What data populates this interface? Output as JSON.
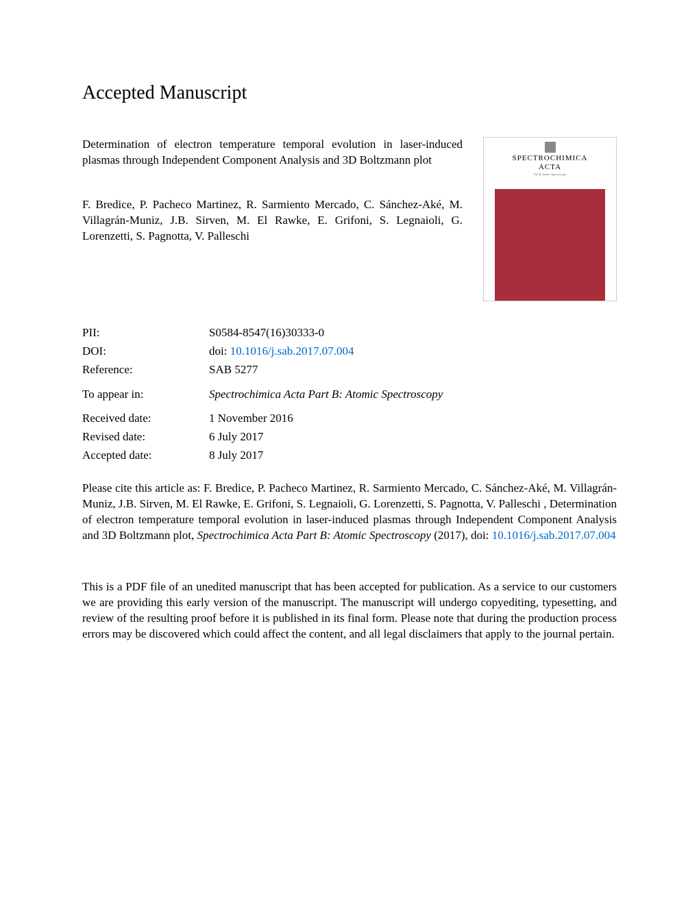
{
  "heading": "Accepted Manuscript",
  "article": {
    "title": "Determination of electron temperature temporal evolution in laser-induced plasmas through Independent Component Analysis and 3D Boltzmann plot",
    "authors": "F. Bredice, P. Pacheco Martinez, R. Sarmiento Mercado, C. Sánchez-Aké, M. Villagrán-Muniz, J.B. Sirven, M. El Rawke, E. Grifoni, S. Legnaioli, G. Lorenzetti, S. Pagnotta, V. Palleschi"
  },
  "journal_cover": {
    "title_line1": "SPECTROCHIMICA",
    "title_line2": "ACTA",
    "body_color": "#a92d3a"
  },
  "metadata": {
    "pii_label": "PII:",
    "pii_value": "S0584-8547(16)30333-0",
    "doi_label": "DOI:",
    "doi_prefix": "doi: ",
    "doi_value": "10.1016/j.sab.2017.07.004",
    "reference_label": "Reference:",
    "reference_value": "SAB 5277",
    "appear_label": "To appear in:",
    "appear_value": "Spectrochimica Acta Part B: Atomic Spectroscopy",
    "received_label": "Received date:",
    "received_value": "1 November 2016",
    "revised_label": "Revised date:",
    "revised_value": "6 July 2017",
    "accepted_label": "Accepted date:",
    "accepted_value": "8 July 2017"
  },
  "citation": {
    "prefix": "Please cite this article as: F. Bredice, P. Pacheco Martinez, R. Sarmiento Mercado, C. Sánchez-Aké, M. Villagrán-Muniz, J.B. Sirven, M. El Rawke, E. Grifoni, S. Legnaioli, G. Lorenzetti, S. Pagnotta, V. Palleschi , Determination of electron temperature temporal evolution in laser-induced plasmas through Independent Component Analysis and 3D Boltzmann plot, ",
    "journal": "Spectrochimica Acta Part B: Atomic Spectroscopy",
    "year": " (2017), doi: ",
    "doi": "10.1016/j.sab.2017.07.004"
  },
  "disclaimer": "This is a PDF file of an unedited manuscript that has been accepted for publication. As a service to our customers we are providing this early version of the manuscript. The manuscript will undergo copyediting, typesetting, and review of the resulting proof before it is published in its final form. Please note that during the production process errors may be discovered which could affect the content, and all legal disclaimers that apply to the journal pertain.",
  "colors": {
    "link_color": "#0066cc",
    "text_color": "#000000",
    "background_color": "#ffffff"
  }
}
